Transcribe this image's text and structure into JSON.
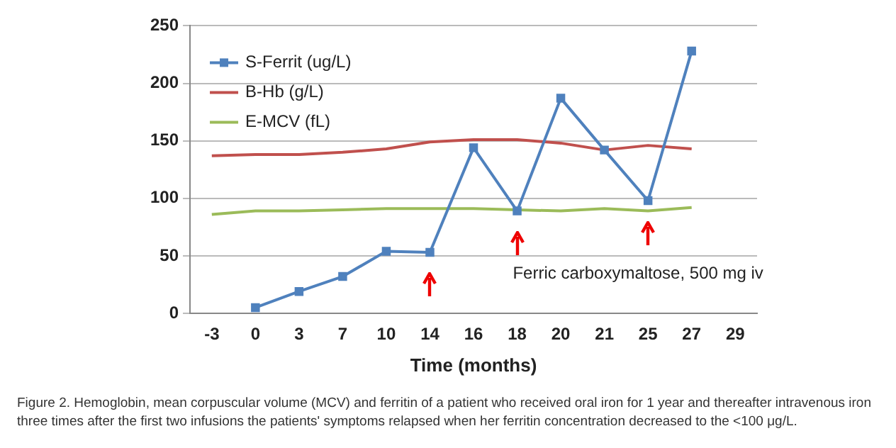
{
  "chart_data": {
    "type": "line",
    "xlabel": "Time (months)",
    "categories": [
      "-3",
      "0",
      "3",
      "7",
      "10",
      "14",
      "16",
      "18",
      "20",
      "21",
      "25",
      "27",
      "29"
    ],
    "series": [
      {
        "name": "S-Ferrit (ug/L)",
        "color": "#4f81bd",
        "marker": "square",
        "values": [
          null,
          5,
          19,
          32,
          54,
          53,
          144,
          89,
          187,
          142,
          98,
          228,
          null
        ]
      },
      {
        "name": "B-Hb (g/L)",
        "color": "#c0504d",
        "marker": "none",
        "values": [
          137,
          138,
          138,
          140,
          143,
          149,
          151,
          151,
          148,
          142,
          146,
          143,
          null
        ]
      },
      {
        "name": "E-MCV (fL)",
        "color": "#9bbb59",
        "marker": "none",
        "values": [
          86,
          89,
          89,
          90,
          91,
          91,
          91,
          90,
          89,
          91,
          89,
          92,
          null
        ]
      }
    ],
    "ylim": [
      0,
      250
    ],
    "yticks": [
      0,
      50,
      100,
      150,
      200,
      250
    ],
    "grid": "y",
    "legend": "top left",
    "annotations": [
      "Ferric carboxymaltose, 500 mg iv",
      "Figure 2. Hemoglobin, mean corpuscular volume (MCV) and ferritin of a patient who received oral iron for 1 year and thereafter intravenous iron three times after the first two infusions the patients' symptoms relapsed when her ferritin concentration decreased to the <100 μg/L."
    ]
  }
}
